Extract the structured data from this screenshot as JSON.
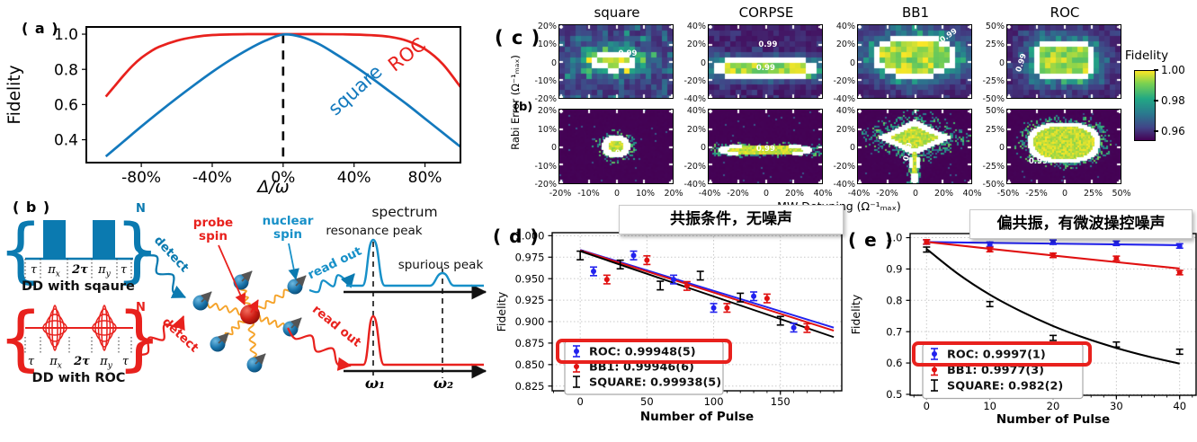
{
  "figure_labels": {
    "a": "( a )",
    "b": "( b )",
    "c": "( c )",
    "d": "( d )",
    "e": "( e )"
  },
  "panel_b": {
    "n_repeat": "N",
    "pulse_labels": {
      "t1": "τ",
      "pi": "π",
      "sub_x": "x",
      "mid": "2τ",
      "sub_y": "y",
      "t2": "τ"
    },
    "caption_square": "DD with sqaure",
    "caption_roc": "DD with ROC",
    "detect": "detect",
    "probe_l1": "probe",
    "probe_l2": "spin",
    "nuclear_l1": "nuclear",
    "nuclear_l2": "spin",
    "read_out": "read out",
    "spectrum_title": "spectrum",
    "resonance_peak": "resonance peak",
    "spurious_peak": "spurious peak",
    "omega1": "ω₁",
    "omega2": "ω₂",
    "colors": {
      "blue": "#0b7ab0",
      "red": "#e8211d",
      "orange": "#f5a32a"
    }
  },
  "chart_data": [
    {
      "id": "a",
      "type": "line",
      "title": "",
      "xlabel": "Δ/ω",
      "ylabel": "Fidelity",
      "xlim": [
        -1.11,
        1.0
      ],
      "ylim": [
        0.27,
        1.041
      ],
      "xticks": {
        "values": [
          -0.8,
          -0.4,
          0,
          0.4,
          0.8
        ],
        "labels": [
          "-80%",
          "-40%",
          "0%",
          "40%",
          "80%"
        ]
      },
      "yticks": {
        "values": [
          1.0,
          0.8,
          0.6,
          0.4
        ],
        "labels": [
          "1.0",
          "0.8",
          "0.6",
          "0.4"
        ]
      },
      "vline": {
        "x": 0
      },
      "series": [
        {
          "name": "ROC",
          "color": "#e8211d",
          "x": [
            -1,
            -0.95,
            -0.9,
            -0.85,
            -0.8,
            -0.75,
            -0.7,
            -0.6,
            -0.5,
            -0.4,
            -0.2,
            0,
            0.2,
            0.35,
            0.5,
            0.6,
            0.7,
            0.8,
            0.9,
            1.0
          ],
          "y": [
            0.645,
            0.705,
            0.765,
            0.82,
            0.865,
            0.9,
            0.928,
            0.963,
            0.984,
            0.995,
            1.0,
            1.0,
            1.0,
            0.999,
            0.994,
            0.985,
            0.962,
            0.915,
            0.83,
            0.7
          ]
        },
        {
          "name": "square",
          "color": "#1379bd",
          "x": [
            -1,
            -0.9,
            -0.8,
            -0.7,
            -0.6,
            -0.5,
            -0.4,
            -0.3,
            -0.2,
            -0.1,
            0,
            0.1,
            0.2,
            0.3,
            0.4,
            0.5,
            0.6,
            0.7,
            0.8,
            0.9,
            1.0
          ],
          "y": [
            0.305,
            0.39,
            0.475,
            0.557,
            0.636,
            0.712,
            0.785,
            0.852,
            0.912,
            0.963,
            0.998,
            0.985,
            0.945,
            0.885,
            0.82,
            0.75,
            0.675,
            0.6,
            0.52,
            0.44,
            0.36
          ]
        }
      ],
      "annotations": [
        {
          "text": "ROC",
          "x": 0.72,
          "y": 0.855,
          "angle": -38,
          "color": "#e8211d",
          "size": 21
        },
        {
          "text": "square",
          "x": 0.43,
          "y": 0.655,
          "angle": -42,
          "color": "#1379bd",
          "size": 21
        }
      ]
    },
    {
      "id": "c",
      "type": "heatmap",
      "xlabel": "MW Detuning (Ω⁻¹ₘₐₓ)",
      "ylabel": "Rabi Error (Ω⁻¹ₘₐₓ)",
      "row_label": "(b)",
      "contour_level": "0.99",
      "colorbar": {
        "title": "Fidelity",
        "ticks": [
          "1.00",
          "0.98",
          "0.96"
        ]
      },
      "columns": [
        {
          "title": "square",
          "yticks": [
            "20%",
            "10%",
            "0",
            "-10%",
            "-20%"
          ],
          "xticks": [
            "-20%",
            "-10%",
            "0",
            "10%",
            "20%"
          ]
        },
        {
          "title": "CORPSE",
          "yticks": [
            "40%",
            "20%",
            "0",
            "-20%",
            "-40%"
          ],
          "xticks": [
            "-40%",
            "-20%",
            "0",
            "20%",
            "40%"
          ]
        },
        {
          "title": "BB1",
          "yticks": [
            "40%",
            "20%",
            "0",
            "-20%",
            "-40%"
          ],
          "xticks": [
            "-40%",
            "-20%",
            "0",
            "20%",
            "40%"
          ]
        },
        {
          "title": "ROC",
          "yticks": [
            "50%",
            "25%",
            "0",
            "-25%",
            "-50%"
          ],
          "xticks": [
            "-50%",
            "-25%",
            "0",
            "25%",
            "50%"
          ]
        }
      ],
      "cells": [
        {
          "row": 0,
          "col": 0,
          "blobs": [
            {
              "cx": 0.47,
              "cy": 0.48,
              "sx": 0.26,
              "sy": 0.165,
              "p": 2,
              "k": 1.5,
              "a": 1.0
            }
          ],
          "base": 0.55,
          "labels": [
            {
              "t": "0.99",
              "x": 0.6,
              "y": 0.4,
              "r": 0
            }
          ]
        },
        {
          "row": 0,
          "col": 1,
          "blobs": [
            {
              "cx": 0.5,
              "cy": 0.57,
              "sx": 0.52,
              "sy": 0.15,
              "p": 3,
              "k": 2,
              "a": 1.05
            }
          ],
          "base": 0.25,
          "labels": [
            {
              "t": "0.99",
              "x": 0.52,
              "y": 0.28,
              "r": 0
            },
            {
              "t": "0.99",
              "x": 0.5,
              "y": 0.6,
              "r": 0
            }
          ]
        },
        {
          "row": 0,
          "col": 2,
          "blobs": [
            {
              "cx": 0.5,
              "cy": 0.42,
              "sx": 0.4,
              "sy": 0.33,
              "p": 2,
              "k": 2,
              "a": 1.1
            }
          ],
          "base": 0.3,
          "labels": [
            {
              "t": "0.99",
              "x": 0.8,
              "y": 0.15,
              "r": -35
            }
          ]
        },
        {
          "row": 0,
          "col": 3,
          "blobs": [
            {
              "cx": 0.5,
              "cy": 0.47,
              "sx": 0.3,
              "sy": 0.3,
              "p": 3,
              "k": 2,
              "a": 1.05
            }
          ],
          "base": 0.28,
          "labels": [
            {
              "t": "0.99",
              "x": 0.12,
              "y": 0.52,
              "r": -72
            }
          ]
        },
        {
          "row": 1,
          "col": 0,
          "blobs": [
            {
              "cx": 0.5,
              "cy": 0.5,
              "sx": 0.12,
              "sy": 0.14,
              "p": 2,
              "k": 1,
              "a": 1.1
            }
          ],
          "band": 0.1,
          "labels": [
            {
              "t": "0.99",
              "x": 0.5,
              "y": 0.6,
              "r": 0
            }
          ]
        },
        {
          "row": 1,
          "col": 1,
          "blobs": [
            {
              "cx": 0.5,
              "cy": 0.55,
              "sx": 0.45,
              "sy": 0.075,
              "p": 2.5,
              "k": 1.5,
              "a": 1.05
            }
          ],
          "band": 0.05,
          "labels": [
            {
              "t": "0.99",
              "x": 0.5,
              "y": 0.54,
              "r": 0
            }
          ]
        },
        {
          "row": 1,
          "col": 2,
          "blobs": [
            {
              "cx": 0.5,
              "cy": 0.38,
              "sx": 0.36,
              "sy": 0.26,
              "p": 1,
              "k": 1,
              "a": 1.05
            },
            {
              "cx": 0.5,
              "cy": 0.72,
              "sx": 0.045,
              "sy": 0.4,
              "p": 2,
              "k": 1,
              "a": 0.95
            }
          ],
          "band": 0.05,
          "labels": [
            {
              "t": "0.99",
              "x": 0.44,
              "y": 0.58,
              "r": -78
            }
          ]
        },
        {
          "row": 1,
          "col": 3,
          "blobs": [
            {
              "cx": 0.5,
              "cy": 0.45,
              "sx": 0.33,
              "sy": 0.28,
              "p": 2.5,
              "k": 2,
              "a": 1.06
            }
          ],
          "band": 0.05,
          "labels": [
            {
              "t": "0.99",
              "x": 0.27,
              "y": 0.72,
              "r": 0
            }
          ]
        }
      ]
    },
    {
      "id": "d",
      "type": "errorbar",
      "title": "共振条件，无噪声",
      "xlabel": "Number of Pulse",
      "ylabel": "Fidelity",
      "xlim": [
        -21,
        196
      ],
      "ylim": [
        0.8195,
        1.0035
      ],
      "xticks": {
        "values": [
          0,
          50,
          100,
          150
        ],
        "labels": [
          "0",
          "50",
          "100",
          "150"
        ],
        "minor_step": 10
      },
      "yticks": {
        "values": [
          1.0,
          0.975,
          0.95,
          0.925,
          0.9,
          0.875,
          0.85,
          0.825
        ],
        "labels": [
          "1.000",
          "0.975",
          "0.950",
          "0.925",
          "0.900",
          "0.875",
          "0.850",
          "0.825"
        ]
      },
      "grid": true,
      "lines": [
        {
          "color": "#2222ee",
          "x": [
            0,
            190
          ],
          "y": [
            0.9835,
            0.893
          ]
        },
        {
          "color": "#e01010",
          "x": [
            0,
            190
          ],
          "y": [
            0.983,
            0.8895
          ]
        },
        {
          "color": "#000000",
          "x": [
            0,
            190
          ],
          "y": [
            0.982,
            0.882
          ]
        }
      ],
      "series": [
        {
          "name": "ROC: 0.99948(5)",
          "color": "#2222ee",
          "marker": "circle",
          "yerr": 0.005,
          "points": [
            [
              10,
              0.9585
            ],
            [
              40,
              0.977
            ],
            [
              70,
              0.949
            ],
            [
              100,
              0.916
            ],
            [
              130,
              0.9295
            ],
            [
              160,
              0.893
            ]
          ]
        },
        {
          "name": "BB1: 0.99946(6)",
          "color": "#e01010",
          "marker": "circle",
          "yerr": 0.005,
          "points": [
            [
              20,
              0.949
            ],
            [
              50,
              0.9715
            ],
            [
              80,
              0.9415
            ],
            [
              110,
              0.916
            ],
            [
              140,
              0.927
            ],
            [
              170,
              0.8925
            ]
          ]
        },
        {
          "name": "SQUARE: 0.99938(5)",
          "color": "#000000",
          "marker": "ibeam",
          "yerr": 0.005,
          "points": [
            [
              0,
              0.977
            ],
            [
              30,
              0.9665
            ],
            [
              60,
              0.942
            ],
            [
              90,
              0.9535
            ],
            [
              120,
              0.928
            ],
            [
              150,
              0.901
            ]
          ]
        }
      ],
      "legend": {
        "highlight_index": 0,
        "highlight_color": "#e8211d"
      }
    },
    {
      "id": "e",
      "type": "errorbar",
      "title": "偏共振，有微波操控噪声",
      "xlabel": "Number of Pulse",
      "ylabel": "Fidelity",
      "xlim": [
        -2.6,
        42.6
      ],
      "ylim": [
        0.497,
        1.013
      ],
      "xticks": {
        "values": [
          0,
          10,
          20,
          30,
          40
        ],
        "labels": [
          "0",
          "10",
          "20",
          "30",
          "40"
        ],
        "minor_step": 2
      },
      "yticks": {
        "values": [
          1.0,
          0.9,
          0.8,
          0.7,
          0.6,
          0.5
        ],
        "labels": [
          "1.0",
          "0.9",
          "0.8",
          "0.7",
          "0.6",
          "0.5"
        ]
      },
      "grid": true,
      "lines": [
        {
          "color": "#2222ee",
          "x": [
            0,
            40
          ],
          "y": [
            0.986,
            0.976
          ]
        },
        {
          "color": "#e01010",
          "x": [
            0,
            10,
            20,
            30,
            40
          ],
          "y": [
            0.9865,
            0.9645,
            0.943,
            0.922,
            0.9015
          ]
        },
        {
          "color": "#000000",
          "x": [
            0,
            5,
            10,
            15,
            20,
            25,
            30,
            35,
            40
          ],
          "y": [
            0.964,
            0.884,
            0.818,
            0.764,
            0.718,
            0.68,
            0.648,
            0.621,
            0.598
          ]
        }
      ],
      "series": [
        {
          "name": "ROC: 0.9997(1)",
          "color": "#2222ee",
          "marker": "circle",
          "yerr": 0.007,
          "points": [
            [
              0,
              0.986
            ],
            [
              10,
              0.979
            ],
            [
              20,
              0.9855
            ],
            [
              30,
              0.982
            ],
            [
              40,
              0.9735
            ]
          ]
        },
        {
          "name": "BB1: 0.9977(3)",
          "color": "#e01010",
          "marker": "circle",
          "yerr": 0.007,
          "points": [
            [
              0,
              0.9865
            ],
            [
              10,
              0.962
            ],
            [
              20,
              0.9435
            ],
            [
              30,
              0.934
            ],
            [
              40,
              0.8885
            ]
          ]
        },
        {
          "name": "SQUARE: 0.982(2)",
          "color": "#000000",
          "marker": "ibeam",
          "yerr": 0.008,
          "points": [
            [
              0,
              0.962
            ],
            [
              10,
              0.788
            ],
            [
              20,
              0.68
            ],
            [
              30,
              0.659
            ],
            [
              40,
              0.636
            ]
          ]
        }
      ],
      "legend": {
        "highlight_index": 0,
        "highlight_color": "#e8211d"
      }
    }
  ]
}
